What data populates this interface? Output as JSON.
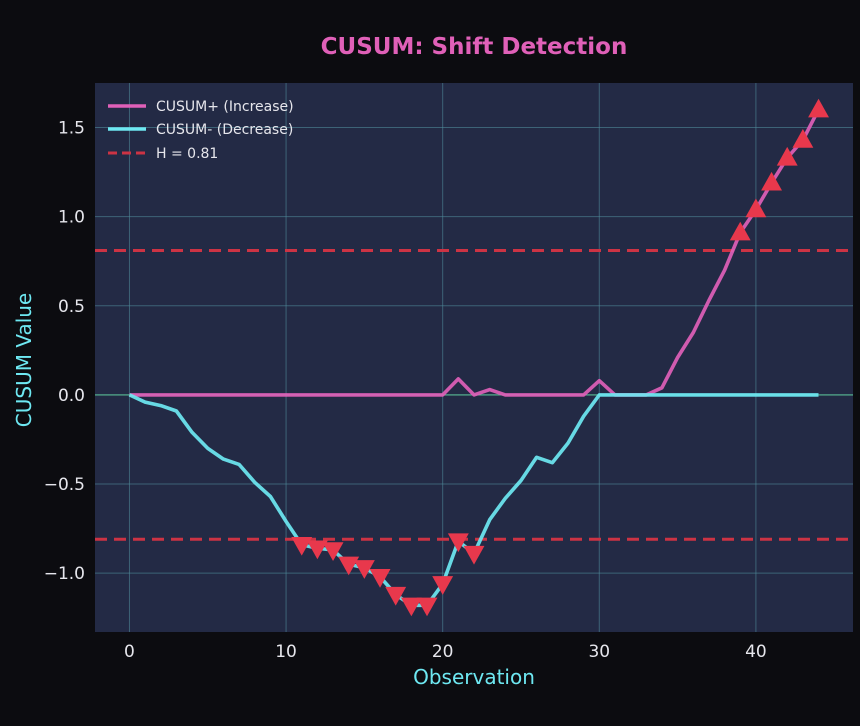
{
  "chart_data": {
    "type": "line",
    "title": "CUSUM: Shift Detection",
    "xlabel": "Observation",
    "ylabel": "CUSUM Value",
    "xlim": [
      -2.2,
      46.2
    ],
    "ylim": [
      -1.33,
      1.75
    ],
    "xticks": [
      0,
      10,
      20,
      30,
      40
    ],
    "yticks": [
      -1.0,
      -0.5,
      0.0,
      0.5,
      1.0,
      1.5
    ],
    "ytick_labels": [
      "−1.0",
      "−0.5",
      "0.0",
      "0.5",
      "1.0",
      "1.5"
    ],
    "grid": true,
    "legend_position": "top-left",
    "threshold": 0.81,
    "series": [
      {
        "name": "CUSUM+ (Increase)",
        "color": "#e060b8",
        "x": [
          0,
          1,
          2,
          3,
          4,
          5,
          6,
          7,
          8,
          9,
          10,
          11,
          12,
          13,
          14,
          15,
          16,
          17,
          18,
          19,
          20,
          21,
          22,
          23,
          24,
          25,
          26,
          27,
          28,
          29,
          30,
          31,
          32,
          33,
          34,
          35,
          36,
          37,
          38,
          39,
          40,
          41,
          42,
          43,
          44
        ],
        "values": [
          0,
          0,
          0,
          0,
          0,
          0,
          0,
          0,
          0,
          0,
          0,
          0,
          0,
          0,
          0,
          0,
          0,
          0,
          0,
          0,
          0,
          0.09,
          0,
          0.03,
          0,
          0,
          0,
          0,
          0,
          0,
          0.08,
          0,
          0,
          0,
          0.04,
          0.21,
          0.35,
          0.53,
          0.7,
          0.91,
          1.04,
          1.19,
          1.33,
          1.43,
          1.6
        ]
      },
      {
        "name": "CUSUM- (Decrease)",
        "color": "#6ee8f2",
        "x": [
          0,
          1,
          2,
          3,
          4,
          5,
          6,
          7,
          8,
          9,
          10,
          11,
          12,
          13,
          14,
          15,
          16,
          17,
          18,
          19,
          20,
          21,
          22,
          23,
          24,
          25,
          26,
          27,
          28,
          29,
          30,
          31,
          32,
          33,
          34,
          35,
          36,
          37,
          38,
          39,
          40,
          41,
          42,
          43,
          44
        ],
        "values": [
          0,
          -0.04,
          -0.06,
          -0.09,
          -0.21,
          -0.3,
          -0.36,
          -0.39,
          -0.49,
          -0.57,
          -0.71,
          -0.84,
          -0.86,
          -0.87,
          -0.95,
          -0.97,
          -1.02,
          -1.12,
          -1.18,
          -1.18,
          -1.06,
          -0.82,
          -0.89,
          -0.7,
          -0.58,
          -0.48,
          -0.35,
          -0.38,
          -0.27,
          -0.12,
          0,
          0,
          0,
          0,
          0,
          0,
          0,
          0,
          0,
          0,
          0,
          0,
          0,
          0,
          0
        ]
      },
      {
        "name": "H = 0.81",
        "color": "#cc3344",
        "style": "dashed"
      }
    ],
    "alarms_up": {
      "marker": "triangle-up",
      "color": "#e8384c",
      "x": [
        39,
        40,
        41,
        42,
        43,
        44
      ],
      "values": [
        0.91,
        1.04,
        1.19,
        1.33,
        1.43,
        1.6
      ]
    },
    "alarms_down": {
      "marker": "triangle-down",
      "color": "#e8384c",
      "x": [
        11,
        12,
        13,
        14,
        15,
        16,
        17,
        18,
        19,
        20,
        21,
        22
      ],
      "values": [
        -0.84,
        -0.86,
        -0.87,
        -0.95,
        -0.97,
        -1.02,
        -1.12,
        -1.18,
        -1.18,
        -1.06,
        -0.82,
        -0.89
      ]
    }
  }
}
